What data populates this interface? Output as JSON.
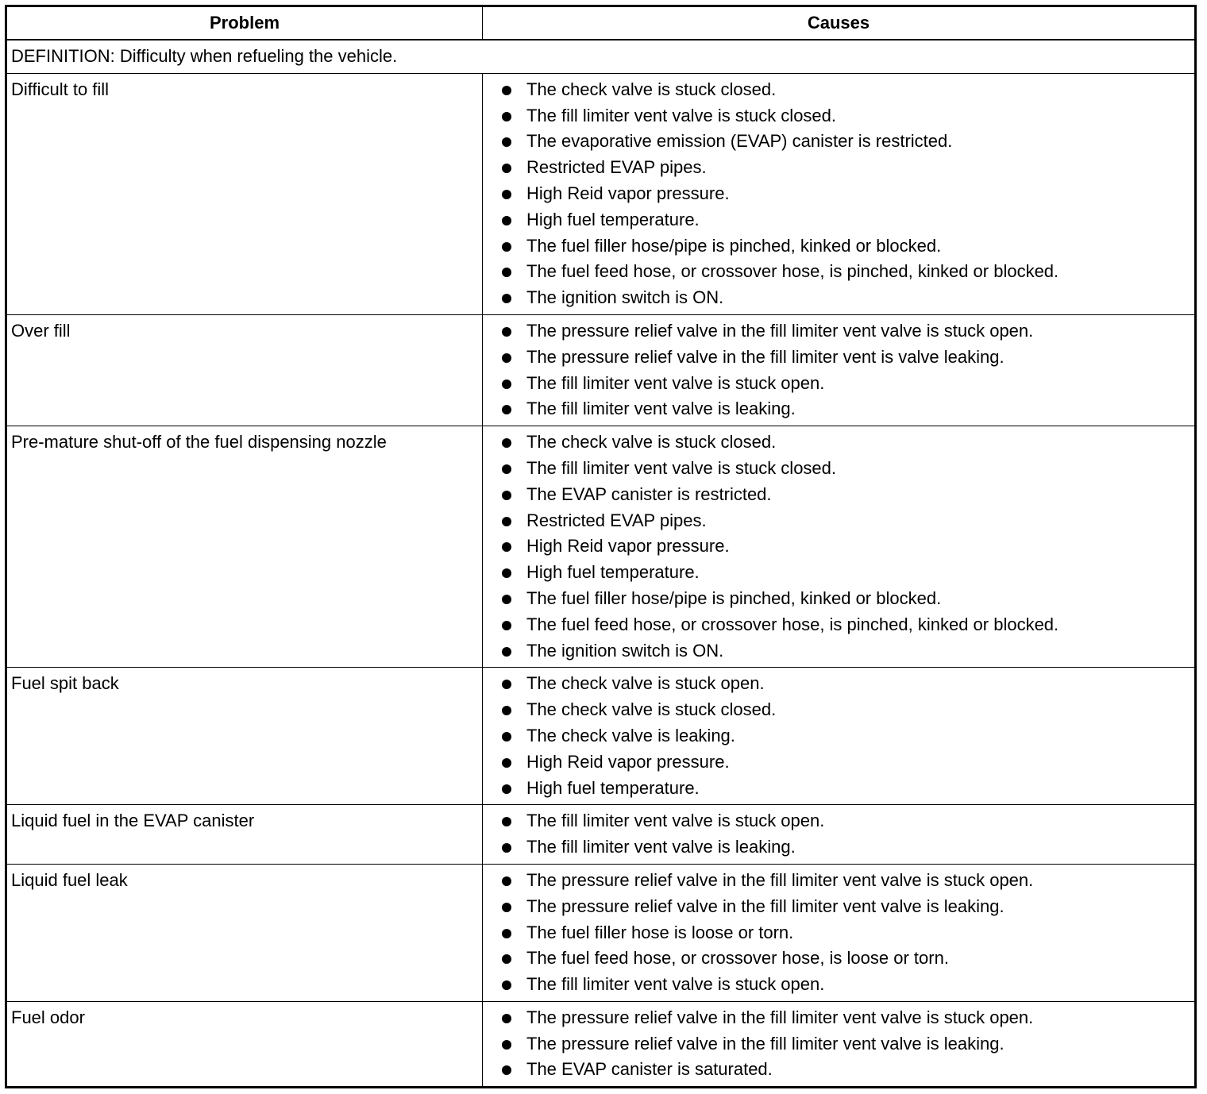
{
  "headers": {
    "problem": "Problem",
    "causes": "Causes"
  },
  "definition": "DEFINITION: Difficulty when refueling the vehicle.",
  "rows": [
    {
      "problem": "Difficult to fill",
      "causes": [
        "The check valve is stuck closed.",
        "The fill limiter vent valve is stuck closed.",
        "The evaporative emission (EVAP) canister is restricted.",
        "Restricted EVAP pipes.",
        "High Reid vapor pressure.",
        "High fuel temperature.",
        "The fuel filler hose/pipe is pinched, kinked or blocked.",
        "The fuel feed hose, or crossover hose, is pinched, kinked or blocked.",
        "The ignition switch is ON."
      ]
    },
    {
      "problem": "Over fill",
      "causes": [
        "The pressure relief valve in the fill limiter vent valve is stuck open.",
        "The pressure relief valve in the fill limiter vent is valve leaking.",
        "The fill limiter vent valve is stuck open.",
        "The fill limiter vent valve is leaking."
      ]
    },
    {
      "problem": "Pre-mature shut-off of the fuel dispensing nozzle",
      "causes": [
        "The check valve is stuck closed.",
        "The fill limiter vent valve is stuck closed.",
        "The EVAP canister is restricted.",
        "Restricted EVAP pipes.",
        "High Reid vapor pressure.",
        "High fuel temperature.",
        "The fuel filler hose/pipe is pinched, kinked or blocked.",
        "The fuel feed hose, or crossover hose, is pinched, kinked or blocked.",
        "The ignition switch is ON."
      ]
    },
    {
      "problem": "Fuel spit back",
      "causes": [
        "The check valve is stuck open.",
        "The check valve is stuck closed.",
        "The check valve is leaking.",
        "High Reid vapor pressure.",
        "High fuel temperature."
      ]
    },
    {
      "problem": "Liquid fuel in the EVAP canister",
      "causes": [
        "The fill limiter vent valve is stuck open.",
        "The fill limiter vent valve is leaking."
      ]
    },
    {
      "problem": "Liquid fuel leak",
      "causes": [
        "The pressure relief valve in the fill limiter vent valve is stuck open.",
        "The pressure relief valve in the fill limiter vent valve is leaking.",
        "The fuel filler hose is loose or torn.",
        "The fuel feed hose, or crossover hose, is loose or torn.",
        "The fill limiter vent valve is stuck open."
      ]
    },
    {
      "problem": "Fuel odor",
      "causes": [
        "The pressure relief valve in the fill limiter vent valve is stuck open.",
        "The pressure relief valve in the fill limiter vent valve is leaking.",
        "The EVAP canister is saturated."
      ]
    }
  ]
}
